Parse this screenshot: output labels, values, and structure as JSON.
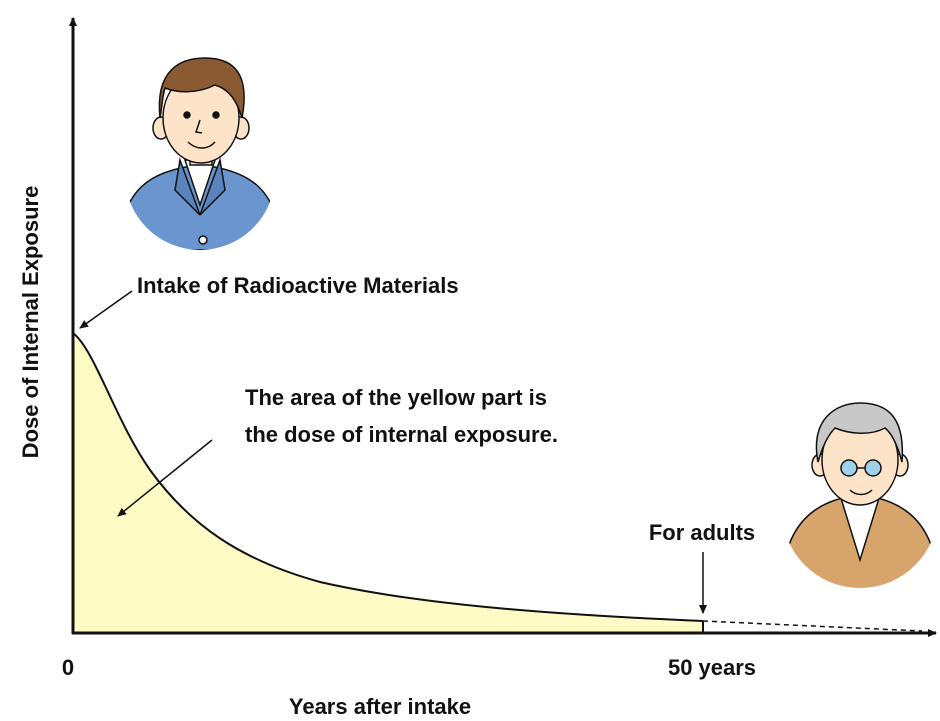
{
  "axes": {
    "y_label": "Dose of Internal Exposure",
    "x_label": "Years after intake",
    "x_start": "0",
    "x_end": "50 years"
  },
  "annotations": {
    "intake": "Intake of Radioactive Materials",
    "area_line1": "The area of the yellow part is",
    "area_line2": "the dose of internal exposure.",
    "adults": "For adults"
  }
}
